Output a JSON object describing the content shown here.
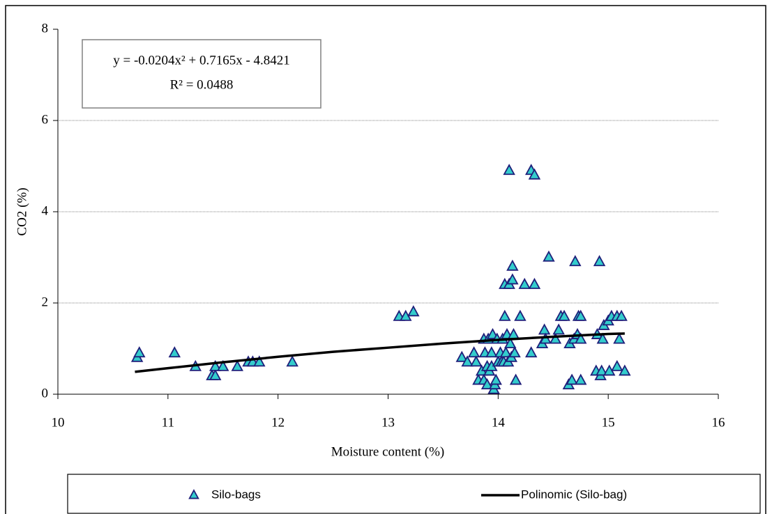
{
  "chart_data": {
    "type": "scatter",
    "xlabel": "Moisture content (%)",
    "ylabel": "CO2 (%)",
    "annotations": [
      "y = -0.0204x² + 0.7165x - 4.8421",
      "R² = 0.0488"
    ],
    "xlim": [
      10,
      16
    ],
    "xticks": [
      10,
      11,
      12,
      13,
      14,
      15,
      16
    ],
    "ylim": [
      0,
      8
    ],
    "yticks": [
      0,
      2,
      4,
      6,
      8
    ],
    "grid": true,
    "legend": "bottom",
    "series": [
      {
        "name": "Silo-bags",
        "type": "scatter",
        "color": "#33cccc",
        "edgecolor": "#1f1f7a",
        "x": [
          10.72,
          10.74,
          11.06,
          11.25,
          11.4,
          11.43,
          11.43,
          11.5,
          11.63,
          11.73,
          11.77,
          11.83,
          12.13,
          13.1,
          13.16,
          13.23,
          13.67,
          13.72,
          13.78,
          13.8,
          13.82,
          13.85,
          13.87,
          13.87,
          13.88,
          13.9,
          13.9,
          13.91,
          13.92,
          13.94,
          13.94,
          13.95,
          13.96,
          13.97,
          13.98,
          13.99,
          14.0,
          14.02,
          14.03,
          14.04,
          14.05,
          14.06,
          14.06,
          14.07,
          14.08,
          14.09,
          14.1,
          14.1,
          14.11,
          14.12,
          14.13,
          14.13,
          14.14,
          14.15,
          14.16,
          14.2,
          14.24,
          14.3,
          14.3,
          14.33,
          14.33,
          14.4,
          14.42,
          14.43,
          14.46,
          14.52,
          14.55,
          14.57,
          14.6,
          14.64,
          14.65,
          14.67,
          14.69,
          14.7,
          14.72,
          14.73,
          14.75,
          14.75,
          14.75,
          14.89,
          14.9,
          14.92,
          14.93,
          14.94,
          14.95,
          14.96,
          15.0,
          15.01,
          15.03,
          15.08,
          15.08,
          15.1,
          15.12,
          15.15
        ],
        "values": [
          0.8,
          0.9,
          0.9,
          0.6,
          0.4,
          0.4,
          0.6,
          0.6,
          0.6,
          0.7,
          0.7,
          0.7,
          0.7,
          1.7,
          1.7,
          1.8,
          0.8,
          0.7,
          0.9,
          0.7,
          0.3,
          0.5,
          1.2,
          0.3,
          0.9,
          0.6,
          0.2,
          1.2,
          0.5,
          0.6,
          0.9,
          1.3,
          0.1,
          0.2,
          0.3,
          1.2,
          0.7,
          0.9,
          0.7,
          1.2,
          0.7,
          1.7,
          2.4,
          0.9,
          1.3,
          0.7,
          2.4,
          4.9,
          1.1,
          0.8,
          2.8,
          2.5,
          1.3,
          0.9,
          0.3,
          1.7,
          2.4,
          0.9,
          4.9,
          4.8,
          2.4,
          1.1,
          1.4,
          1.2,
          3.0,
          1.2,
          1.4,
          1.7,
          1.7,
          0.2,
          1.1,
          0.3,
          1.2,
          2.9,
          1.3,
          1.7,
          1.7,
          0.3,
          1.2,
          0.5,
          1.3,
          2.9,
          0.4,
          0.5,
          1.2,
          1.5,
          1.6,
          0.5,
          1.7,
          0.6,
          1.7,
          1.2,
          1.7,
          0.5
        ]
      },
      {
        "name": "Polinomic (Silo-bag)",
        "type": "line",
        "color": "#000000",
        "x": [
          10.7,
          11,
          11.5,
          12,
          12.5,
          13,
          13.5,
          14,
          14.5,
          15,
          15.15
        ],
        "values": [
          0.49,
          0.57,
          0.7,
          0.82,
          0.93,
          1.02,
          1.11,
          1.19,
          1.26,
          1.32,
          1.33
        ]
      }
    ]
  }
}
